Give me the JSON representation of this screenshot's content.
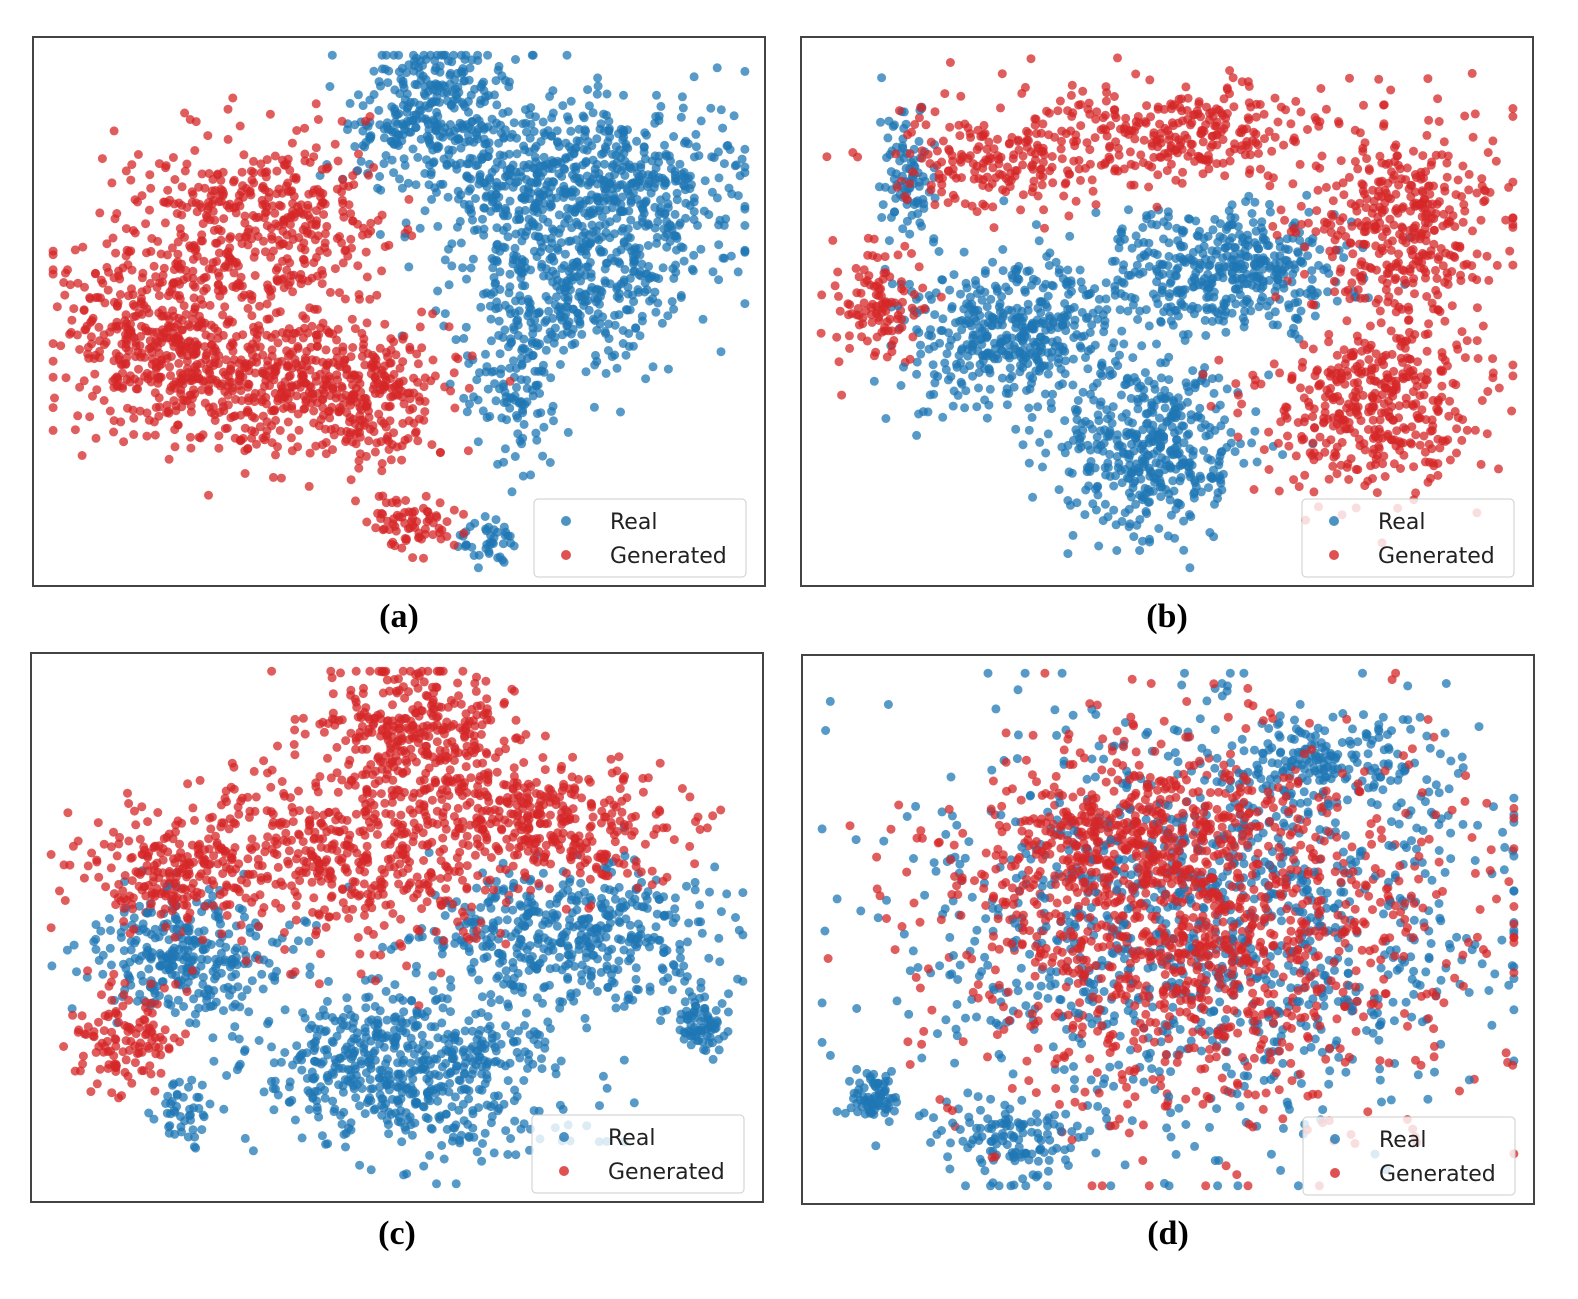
{
  "colors": {
    "real": "#1f77b4",
    "generated": "#d62728",
    "frame": "#444444"
  },
  "chart_data": [
    {
      "type": "scatter",
      "caption": "(a)",
      "title": "",
      "xlabel": "",
      "ylabel": "",
      "xlim": [
        0,
        100
      ],
      "ylim": [
        0,
        100
      ],
      "grid": false,
      "legend": "bottom-right",
      "series": [
        {
          "name": "Real",
          "color": "#1f77b4",
          "seed": 11,
          "count": 1500,
          "clusters": [
            {
              "x": 55,
              "y": 88,
              "sx": 6,
              "sy": 7,
              "w": 3
            },
            {
              "x": 70,
              "y": 74,
              "sx": 8,
              "sy": 8,
              "w": 4
            },
            {
              "x": 85,
              "y": 72,
              "sx": 7,
              "sy": 9,
              "w": 3
            },
            {
              "x": 74,
              "y": 52,
              "sx": 8,
              "sy": 7,
              "w": 3
            },
            {
              "x": 66,
              "y": 34,
              "sx": 3,
              "sy": 7,
              "w": 1
            },
            {
              "x": 63,
              "y": 6,
              "sx": 2,
              "sy": 2,
              "w": 0.4
            }
          ]
        },
        {
          "name": "Generated",
          "color": "#d62728",
          "seed": 23,
          "count": 1500,
          "clusters": [
            {
              "x": 30,
              "y": 66,
              "sx": 9,
              "sy": 9,
              "w": 3
            },
            {
              "x": 15,
              "y": 45,
              "sx": 7,
              "sy": 9,
              "w": 2.5
            },
            {
              "x": 32,
              "y": 36,
              "sx": 10,
              "sy": 7,
              "w": 3
            },
            {
              "x": 47,
              "y": 33,
              "sx": 5,
              "sy": 6,
              "w": 1.2
            },
            {
              "x": 52,
              "y": 10,
              "sx": 3,
              "sy": 3,
              "w": 0.5
            }
          ]
        }
      ]
    },
    {
      "type": "scatter",
      "caption": "(b)",
      "title": "",
      "xlabel": "",
      "ylabel": "",
      "xlim": [
        0,
        100
      ],
      "ylim": [
        0,
        100
      ],
      "grid": false,
      "legend": "bottom-right",
      "series": [
        {
          "name": "Real",
          "color": "#1f77b4",
          "seed": 31,
          "count": 1400,
          "clusters": [
            {
              "x": 58,
              "y": 58,
              "sx": 9,
              "sy": 6,
              "w": 3
            },
            {
              "x": 28,
              "y": 46,
              "sx": 8,
              "sy": 7,
              "w": 3
            },
            {
              "x": 47,
              "y": 23,
              "sx": 6,
              "sy": 8,
              "w": 3
            },
            {
              "x": 13,
              "y": 75,
              "sx": 2,
              "sy": 6,
              "w": 0.6
            }
          ]
        },
        {
          "name": "Generated",
          "color": "#d62728",
          "seed": 47,
          "count": 1400,
          "clusters": [
            {
              "x": 25,
              "y": 80,
              "sx": 7,
              "sy": 6,
              "w": 1.5
            },
            {
              "x": 52,
              "y": 84,
              "sx": 9,
              "sy": 5,
              "w": 2
            },
            {
              "x": 83,
              "y": 66,
              "sx": 7,
              "sy": 10,
              "w": 3
            },
            {
              "x": 79,
              "y": 32,
              "sx": 8,
              "sy": 8,
              "w": 3
            },
            {
              "x": 9,
              "y": 52,
              "sx": 3,
              "sy": 6,
              "w": 0.8
            }
          ]
        }
      ]
    },
    {
      "type": "scatter",
      "caption": "(c)",
      "title": "",
      "xlabel": "",
      "ylabel": "",
      "xlim": [
        0,
        100
      ],
      "ylim": [
        0,
        100
      ],
      "grid": false,
      "legend": "bottom-right",
      "series": [
        {
          "name": "Real",
          "color": "#1f77b4",
          "seed": 53,
          "count": 1500,
          "clusters": [
            {
              "x": 52,
              "y": 23,
              "sx": 11,
              "sy": 8,
              "w": 4
            },
            {
              "x": 75,
              "y": 48,
              "sx": 10,
              "sy": 7,
              "w": 3
            },
            {
              "x": 20,
              "y": 45,
              "sx": 7,
              "sy": 6,
              "w": 2
            },
            {
              "x": 93,
              "y": 32,
              "sx": 2,
              "sy": 3,
              "w": 0.5
            },
            {
              "x": 20,
              "y": 15,
              "sx": 2,
              "sy": 3,
              "w": 0.3
            }
          ]
        },
        {
          "name": "Generated",
          "color": "#d62728",
          "seed": 67,
          "count": 1500,
          "clusters": [
            {
              "x": 53,
              "y": 87,
              "sx": 6,
              "sy": 6,
              "w": 2
            },
            {
              "x": 43,
              "y": 65,
              "sx": 13,
              "sy": 9,
              "w": 3.5
            },
            {
              "x": 72,
              "y": 70,
              "sx": 9,
              "sy": 6,
              "w": 2
            },
            {
              "x": 18,
              "y": 60,
              "sx": 6,
              "sy": 5,
              "w": 1.2
            },
            {
              "x": 12,
              "y": 30,
              "sx": 4,
              "sy": 5,
              "w": 0.8
            }
          ]
        }
      ]
    },
    {
      "type": "scatter",
      "caption": "(d)",
      "title": "",
      "xlabel": "",
      "ylabel": "",
      "xlim": [
        0,
        100
      ],
      "ylim": [
        0,
        100
      ],
      "grid": false,
      "legend": "bottom-right",
      "series": [
        {
          "name": "Real",
          "color": "#1f77b4",
          "seed": 79,
          "count": 1500,
          "clusters": [
            {
              "x": 55,
              "y": 50,
              "sx": 20,
              "sy": 19,
              "w": 6
            },
            {
              "x": 73,
              "y": 82,
              "sx": 8,
              "sy": 5,
              "w": 1
            },
            {
              "x": 8,
              "y": 18,
              "sx": 2,
              "sy": 3,
              "w": 0.4
            },
            {
              "x": 28,
              "y": 10,
              "sx": 5,
              "sy": 3,
              "w": 0.6
            }
          ]
        },
        {
          "name": "Generated",
          "color": "#d62728",
          "seed": 97,
          "count": 1500,
          "clusters": [
            {
              "x": 55,
              "y": 50,
              "sx": 18,
              "sy": 18,
              "w": 6
            },
            {
              "x": 45,
              "y": 68,
              "sx": 10,
              "sy": 8,
              "w": 1.5
            }
          ]
        }
      ]
    }
  ]
}
